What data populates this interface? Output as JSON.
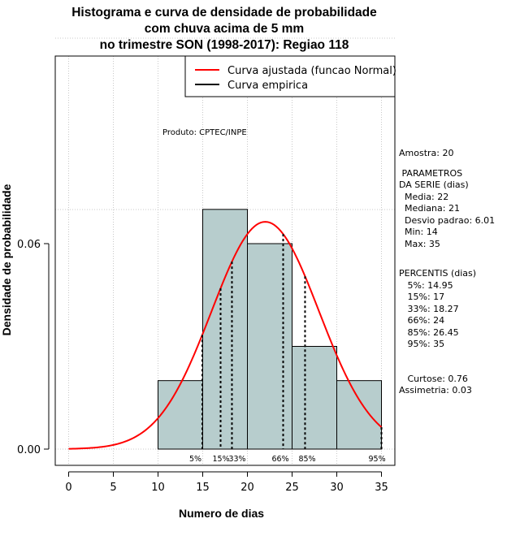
{
  "chart_data": {
    "type": "bar",
    "title_lines": [
      "Histograma e curva de densidade de probabilidade",
      "com chuva acima de 5 mm",
      "no trimestre SON (1998-2017): Regiao 118"
    ],
    "xlabel": "Numero de dias",
    "ylabel": "Densidade de probabilidade",
    "xlim": [
      -1.5,
      36.5
    ],
    "ylim": [
      0,
      0.06
    ],
    "x_ticks": [
      0,
      5,
      10,
      15,
      20,
      25,
      30,
      35
    ],
    "y_ticks": [
      0.0,
      0.06
    ],
    "y_tick_labels": [
      "0.00",
      "0.06"
    ],
    "grid": true,
    "bars": [
      {
        "x0": 10,
        "x1": 15,
        "density": 0.02
      },
      {
        "x0": 15,
        "x1": 20,
        "density": 0.07
      },
      {
        "x0": 20,
        "x1": 25,
        "density": 0.06
      },
      {
        "x0": 25,
        "x1": 30,
        "density": 0.03
      },
      {
        "x0": 30,
        "x1": 35,
        "density": 0.02
      }
    ],
    "bar_color": "#b7cdcd",
    "normal_curve": {
      "name": "Curva ajustada (funcao Normal)",
      "mean": 22,
      "sd": 6.01,
      "color": "#ff0000"
    },
    "empirical_curve": {
      "name": "Curva empirica",
      "color": "#000000"
    },
    "percentile_lines": [
      {
        "label": "5%",
        "x": 14.95
      },
      {
        "label": "15%",
        "x": 17
      },
      {
        "label": "33%",
        "x": 18.27
      },
      {
        "label": "66%",
        "x": 24
      },
      {
        "label": "85%",
        "x": 26.45
      },
      {
        "label": "95%",
        "x": 35
      }
    ],
    "legend_position": "top-right",
    "annotation": "Produto: CPTEC/INPE"
  },
  "stats": {
    "amostra": "Amostra: 20",
    "param_title1": " PARAMETROS",
    "param_title2": "DA SERIE (dias)",
    "media": "  Media: 22",
    "mediana": "  Mediana: 21",
    "desvio": "  Desvio padrao: 6.01",
    "min": "  Min: 14",
    "max": "  Max: 35",
    "perc_title": "PERCENTIS (dias)",
    "p5": "   5%: 14.95",
    "p15": "   15%: 17",
    "p33": "   33%: 18.27",
    "p66": "   66%: 24",
    "p85": "   85%: 26.45",
    "p95": "   95%: 35",
    "curtose": "   Curtose: 0.76",
    "assimetria": "Assimetria: 0.03"
  }
}
